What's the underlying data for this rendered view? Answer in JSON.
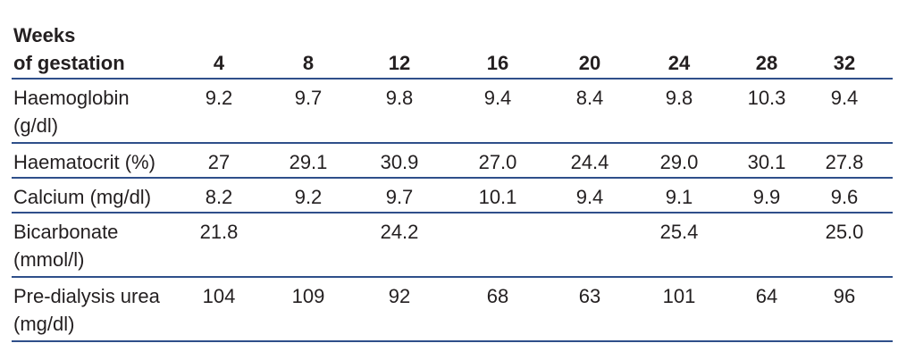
{
  "table": {
    "header": {
      "label": [
        "Weeks",
        "of gestation"
      ],
      "columns": [
        "4",
        "8",
        "12",
        "16",
        "20",
        "24",
        "28",
        "32"
      ]
    },
    "rows": [
      {
        "label": [
          "Haemoglobin",
          "(g/dl)"
        ],
        "cells": [
          "9.2",
          "9.7",
          "9.8",
          "9.4",
          "8.4",
          "9.8",
          "10.3",
          "9.4"
        ]
      },
      {
        "label": [
          "Haematocrit (%)"
        ],
        "cells": [
          "27",
          "29.1",
          "30.9",
          "27.0",
          "24.4",
          "29.0",
          "30.1",
          "27.8"
        ]
      },
      {
        "label": [
          "Calcium (mg/dl)"
        ],
        "cells": [
          "8.2",
          "9.2",
          "9.7",
          "10.1",
          "9.4",
          "9.1",
          "9.9",
          "9.6"
        ]
      },
      {
        "label": [
          "Bicarbonate",
          "(mmol/l)"
        ],
        "cells": [
          "21.8",
          null,
          "24.2",
          null,
          null,
          "25.4",
          null,
          "25.0"
        ]
      },
      {
        "label": [
          "Pre-dialysis urea",
          "(mg/dl)"
        ],
        "cells": [
          "104",
          "109",
          "92",
          "68",
          "63",
          "101",
          "64",
          "96"
        ]
      }
    ]
  }
}
